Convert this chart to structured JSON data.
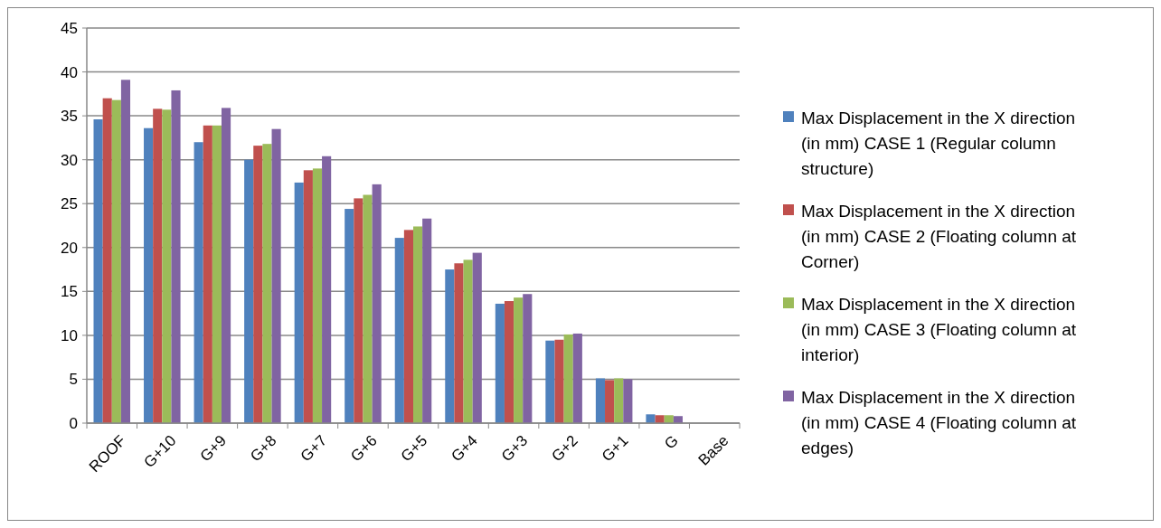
{
  "chart_data": {
    "type": "bar",
    "categories": [
      "ROOF",
      "G+10",
      "G+9",
      "G+8",
      "G+7",
      "G+6",
      "G+5",
      "G+4",
      "G+3",
      "G+2",
      "G+1",
      "G",
      "Base"
    ],
    "series": [
      {
        "name": "Max Displacement in the X direction (in mm) CASE  1 (Regular column structure)",
        "color": "#4f81bd",
        "values": [
          34.6,
          33.6,
          32.0,
          30.0,
          27.4,
          24.4,
          21.1,
          17.5,
          13.6,
          9.4,
          5.1,
          1.0,
          0
        ]
      },
      {
        "name": "Max Displacement in the X direction (in mm) CASE 2 (Floating column at Corner)",
        "color": "#c0504d",
        "values": [
          37.0,
          35.8,
          33.9,
          31.6,
          28.8,
          25.6,
          22.0,
          18.2,
          13.9,
          9.5,
          4.9,
          0.9,
          0
        ]
      },
      {
        "name": "Max Displacement in the X direction (in mm) CASE 3 (Floating column at interior)",
        "color": "#9bbb59",
        "values": [
          36.8,
          35.7,
          33.9,
          31.8,
          29.0,
          26.0,
          22.4,
          18.6,
          14.3,
          10.1,
          5.1,
          0.9,
          0
        ]
      },
      {
        "name": "Max Displacement in the X direction (in mm) CASE 4 (Floating column at edges)",
        "color": "#8064a2",
        "values": [
          39.1,
          37.9,
          35.9,
          33.5,
          30.4,
          27.2,
          23.3,
          19.4,
          14.7,
          10.2,
          5.0,
          0.8,
          0
        ]
      }
    ],
    "ylim": [
      0,
      45
    ],
    "yticks": [
      0,
      5,
      10,
      15,
      20,
      25,
      30,
      35,
      40,
      45
    ],
    "grid": "y",
    "legend": "right"
  }
}
